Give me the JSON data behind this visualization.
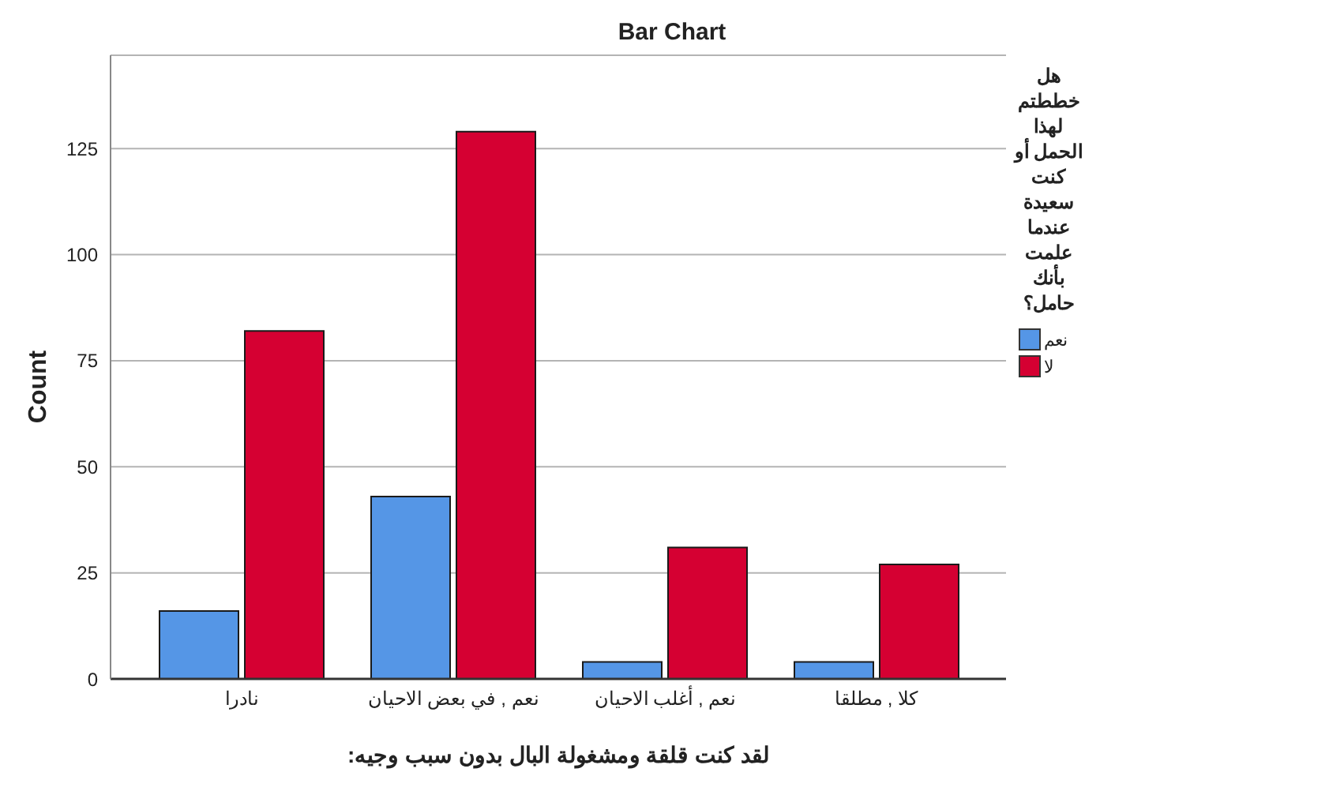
{
  "chart_data": {
    "type": "bar",
    "title": "Bar Chart",
    "xlabel": "لقد كنت قلقة ومشغولة البال بدون سبب وجيه:",
    "ylabel": "Count",
    "legend_title": "هل خططتم لهذا الحمل أو كنت سعيدة عندما علمت بأنك حامل؟",
    "categories": [
      "نادرا",
      "نعم , في بعض الاحيان",
      "نعم , أغلب الاحيان",
      "كلا , مطلقا"
    ],
    "series": [
      {
        "name": "نعم",
        "color": "#5596e6",
        "values": [
          16,
          43,
          4,
          4
        ]
      },
      {
        "name": "لا",
        "color": "#d50032",
        "values": [
          82,
          129,
          31,
          27
        ]
      }
    ],
    "ylim": [
      0,
      147
    ],
    "yticks": [
      0,
      25,
      50,
      75,
      100,
      125
    ],
    "grid": "y",
    "legend": "right"
  }
}
